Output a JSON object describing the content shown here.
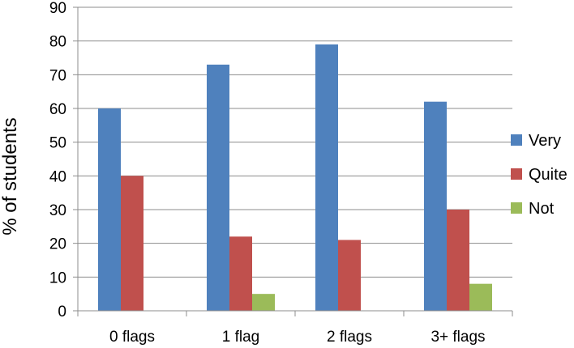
{
  "chart_data": {
    "type": "bar",
    "title": "",
    "xlabel": "",
    "ylabel": "% of students",
    "ylim": [
      0,
      90
    ],
    "yticks": [
      0,
      10,
      20,
      30,
      40,
      50,
      60,
      70,
      80,
      90
    ],
    "grid": true,
    "legend_position": "right",
    "categories": [
      "0 flags",
      "1 flag",
      "2 flags",
      "3+ flags"
    ],
    "series": [
      {
        "name": "Very",
        "color": "#4f81bd",
        "values": [
          60,
          73,
          79,
          62
        ]
      },
      {
        "name": "Quite",
        "color": "#c0504d",
        "values": [
          40,
          22,
          21,
          30
        ]
      },
      {
        "name": "Not",
        "color": "#9bbb59",
        "values": [
          0,
          5,
          0,
          8
        ]
      }
    ]
  }
}
